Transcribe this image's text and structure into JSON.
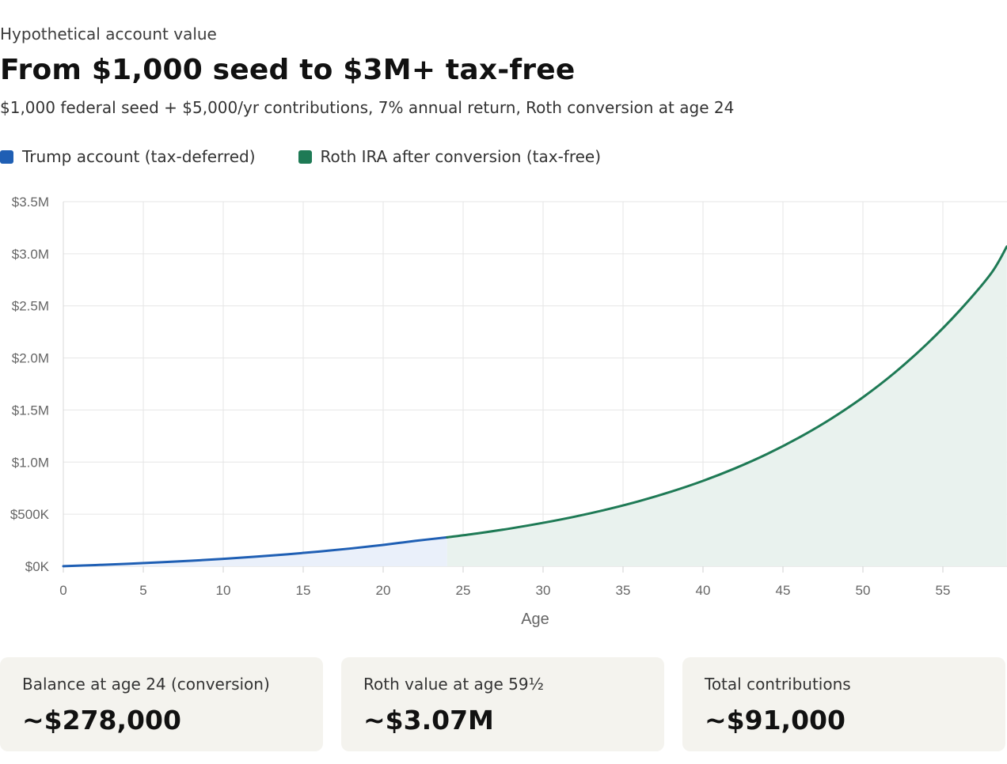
{
  "header": {
    "eyebrow": "Hypothetical account value",
    "title": "From $1,000 seed to $3M+ tax-free",
    "subtitle": "$1,000 federal seed + $5,000/yr contributions, 7% annual return, Roth conversion at age 24"
  },
  "colors": {
    "trump": "#1f5fb4",
    "roth": "#1e7a55",
    "trump_fill": "#eaf0fa",
    "roth_fill": "#e9f2ee",
    "grid": "#e6e6e6"
  },
  "chart_data": {
    "type": "area",
    "xlabel": "Age",
    "ylabel": "",
    "xlim": [
      0,
      59
    ],
    "ylim": [
      0,
      3500000
    ],
    "x_ticks": [
      0,
      5,
      10,
      15,
      20,
      25,
      30,
      35,
      40,
      45,
      50,
      55
    ],
    "y_ticks": [
      {
        "value": 0,
        "label": "$0K"
      },
      {
        "value": 500000,
        "label": "$500K"
      },
      {
        "value": 1000000,
        "label": "$1.0M"
      },
      {
        "value": 1500000,
        "label": "$1.5M"
      },
      {
        "value": 2000000,
        "label": "$2.0M"
      },
      {
        "value": 2500000,
        "label": "$2.5M"
      },
      {
        "value": 3000000,
        "label": "$3.0M"
      },
      {
        "value": 3500000,
        "label": "$3.5M"
      }
    ],
    "grid": true,
    "legend": "top-left",
    "series": [
      {
        "name": "Trump account (tax-deferred)",
        "x": [
          0,
          2,
          4,
          6,
          8,
          10,
          12,
          14,
          16,
          18,
          20,
          22,
          24
        ],
        "values": [
          1000,
          11500,
          23600,
          37500,
          53300,
          71300,
          91800,
          115000,
          141400,
          171300,
          205200,
          243800,
          278000
        ]
      },
      {
        "name": "Roth IRA after conversion (tax-free)",
        "x": [
          24,
          26,
          28,
          30,
          32,
          34,
          36,
          38,
          40,
          42,
          44,
          46,
          48,
          50,
          52,
          54,
          56,
          58,
          59
        ],
        "values": [
          278000,
          318000,
          364000,
          417000,
          477000,
          546000,
          625000,
          716000,
          820000,
          940000,
          1077000,
          1235000,
          1415000,
          1622000,
          1860000,
          2134000,
          2447000,
          2808000,
          3070000
        ]
      }
    ]
  },
  "cards": [
    {
      "label": "Balance at age 24 (conversion)",
      "value": "~$278,000"
    },
    {
      "label": "Roth value at age 59½",
      "value": "~$3.07M"
    },
    {
      "label": "Total contributions",
      "value": "~$91,000"
    }
  ]
}
